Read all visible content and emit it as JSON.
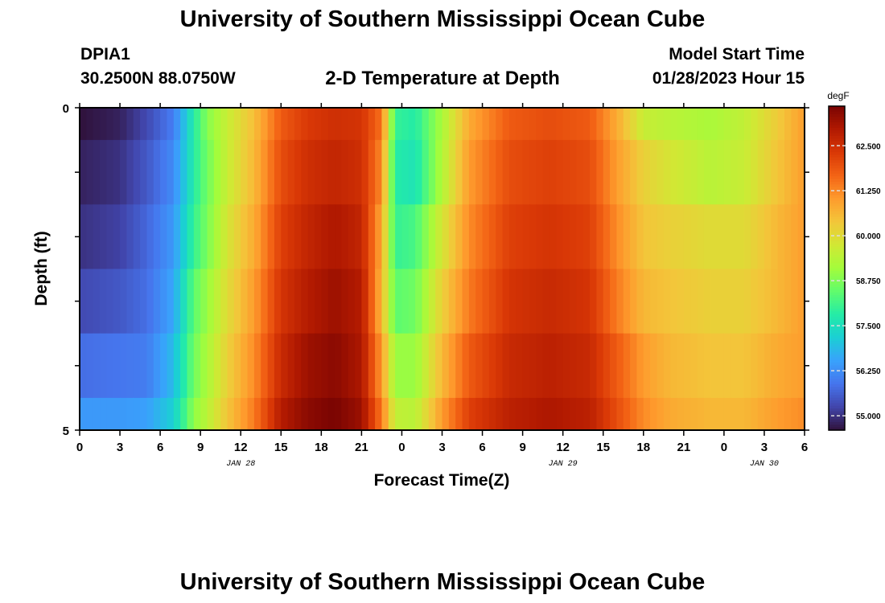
{
  "header": {
    "title": "University of Southern Mississippi Ocean Cube",
    "station_id": "DPIA1",
    "station_coords": "30.2500N  88.0750W",
    "plot_title": "2-D Temperature at Depth",
    "model_start_label": "Model Start Time",
    "model_start_value": "01/28/2023 Hour 15"
  },
  "footer": {
    "title": "University of Southern Mississippi Ocean Cube"
  },
  "chart_data": {
    "type": "heatmap",
    "title": "2-D Temperature at Depth",
    "xlabel": "Forecast Time(Z)",
    "ylabel": "Depth (ft)",
    "x_start_hour": 0,
    "x_end_hour": 54,
    "x_tick_hours": [
      0,
      3,
      6,
      9,
      12,
      15,
      18,
      21,
      24,
      27,
      30,
      33,
      36,
      39,
      42,
      45,
      48,
      51,
      54
    ],
    "x_tick_labels": [
      "0",
      "3",
      "6",
      "9",
      "12",
      "15",
      "18",
      "21",
      "0",
      "3",
      "6",
      "9",
      "12",
      "15",
      "18",
      "21",
      "0",
      "3",
      "6"
    ],
    "date_labels": [
      {
        "hour": 12,
        "text": "JAN 28"
      },
      {
        "hour": 36,
        "text": "JAN 29"
      },
      {
        "hour": 51,
        "text": "JAN 30"
      }
    ],
    "y_range": [
      0,
      5
    ],
    "y_tick_labels": [
      {
        "value": 0,
        "text": "0"
      },
      {
        "value": 5,
        "text": "5"
      }
    ],
    "depth_layers": [
      0,
      1,
      2,
      3,
      4,
      5
    ],
    "colorbar": {
      "unit": "degF",
      "range": [
        54.6,
        63.6
      ],
      "ticks": [
        "55.000",
        "56.250",
        "57.500",
        "58.750",
        "60.000",
        "61.250",
        "62.500"
      ],
      "colors": [
        "#30123b",
        "#4145ab",
        "#4675ed",
        "#39a2fc",
        "#1bcfd4",
        "#24eca6",
        "#61fc6c",
        "#a4fc3b",
        "#d1e834",
        "#f3c63a",
        "#fe9b2d",
        "#f36315",
        "#d93806",
        "#b11901",
        "#7a0402"
      ]
    },
    "time_knots_hours": [
      0,
      3,
      5,
      7,
      8.5,
      9.5,
      11,
      13,
      15,
      17,
      19,
      21,
      22.5,
      23.5,
      25,
      27,
      29,
      32,
      35,
      38,
      40,
      42,
      44,
      47,
      49.5,
      52,
      54
    ],
    "temperature_degF_by_depth": [
      [
        54.6,
        54.8,
        55.3,
        56.0,
        57.8,
        58.8,
        59.6,
        60.5,
        61.8,
        62.3,
        62.5,
        62.4,
        61.5,
        58.0,
        57.8,
        59.2,
        60.8,
        61.8,
        62.0,
        61.8,
        60.8,
        59.6,
        59.4,
        59.2,
        59.5,
        60.3,
        61.0
      ],
      [
        54.8,
        55.0,
        55.5,
        56.2,
        57.8,
        58.6,
        59.6,
        60.6,
        62.0,
        62.5,
        62.7,
        62.5,
        61.2,
        57.8,
        57.6,
        59.3,
        61.0,
        62.0,
        62.2,
        62.0,
        61.0,
        60.2,
        59.8,
        59.4,
        59.6,
        60.4,
        61.0
      ],
      [
        55.0,
        55.2,
        55.7,
        56.4,
        58.0,
        58.7,
        59.8,
        60.8,
        62.2,
        62.7,
        63.0,
        62.7,
        60.8,
        58.0,
        58.2,
        59.8,
        61.2,
        62.2,
        62.4,
        62.2,
        61.2,
        60.4,
        60.2,
        60.0,
        60.0,
        60.6,
        61.0
      ],
      [
        55.3,
        55.5,
        55.8,
        56.6,
        58.4,
        59.0,
        60.0,
        61.0,
        62.4,
        62.9,
        63.2,
        62.9,
        60.6,
        58.4,
        58.6,
        60.2,
        61.4,
        62.4,
        62.6,
        62.4,
        61.4,
        60.6,
        60.4,
        60.2,
        60.2,
        60.6,
        61.0
      ],
      [
        55.8,
        55.9,
        56.0,
        56.9,
        58.6,
        59.2,
        60.2,
        61.2,
        62.6,
        63.2,
        63.4,
        63.0,
        61.0,
        59.0,
        59.0,
        60.6,
        61.8,
        62.6,
        62.8,
        62.6,
        61.8,
        61.0,
        60.6,
        60.4,
        60.4,
        60.8,
        61.0
      ],
      [
        56.4,
        56.4,
        56.5,
        57.2,
        58.9,
        59.4,
        60.4,
        61.4,
        62.9,
        63.4,
        63.6,
        63.2,
        61.4,
        59.5,
        59.4,
        61.0,
        62.2,
        62.8,
        63.0,
        62.8,
        62.0,
        61.2,
        60.8,
        60.6,
        60.6,
        61.0,
        61.2
      ]
    ]
  }
}
